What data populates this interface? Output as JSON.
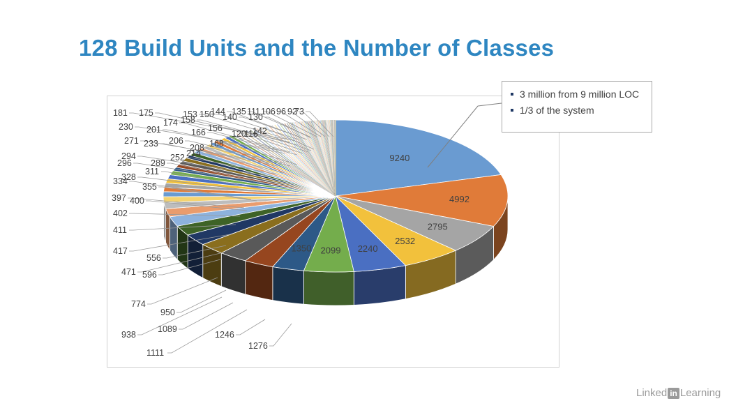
{
  "slide": {
    "title": "128 Build Units and the Number of Classes"
  },
  "callout": {
    "items": [
      "3 million from 9 million LOC",
      "1/3 of the system"
    ]
  },
  "watermark": {
    "brand_left": "Linked",
    "brand_mid": "in",
    "brand_right": "Learning"
  },
  "chart_data": {
    "type": "pie",
    "title": "",
    "labels_outside_left": [
      181,
      175,
      153,
      150,
      158,
      144,
      140,
      130,
      135,
      111,
      106,
      96,
      92,
      73,
      230,
      201,
      174,
      166,
      156,
      142,
      120,
      116,
      271,
      233,
      206,
      208,
      168,
      294,
      252,
      214,
      296,
      289,
      328,
      311,
      334,
      355,
      397,
      400,
      402,
      411,
      417,
      556,
      471,
      596,
      774,
      950,
      938,
      1089,
      1111,
      1246,
      1276
    ],
    "values": [
      9240,
      4992,
      2795,
      2532,
      2240,
      2099,
      1350,
      1276,
      1246,
      1111,
      1089,
      950,
      938,
      774,
      596,
      556,
      471,
      417,
      411,
      402,
      400,
      397,
      355,
      334,
      328,
      311,
      296,
      294,
      289,
      271,
      252,
      233,
      230,
      214,
      208,
      206,
      201,
      181,
      175,
      174,
      168,
      166,
      158,
      156,
      153,
      150,
      144,
      142,
      140,
      135,
      130,
      120,
      116,
      111,
      106,
      96,
      92,
      73,
      70,
      68,
      66,
      64,
      62,
      60,
      58,
      56,
      54,
      52,
      50,
      49,
      48,
      47,
      46,
      45,
      44,
      43,
      42,
      41,
      40,
      39,
      38,
      37,
      36,
      35,
      34,
      33,
      32,
      31,
      30,
      29,
      28,
      27,
      26,
      25,
      24,
      23,
      22,
      21,
      20,
      19,
      18,
      17,
      16,
      15,
      14,
      13,
      12,
      11,
      10,
      10,
      9,
      9,
      8,
      8,
      7,
      7,
      6,
      6,
      5,
      5,
      4,
      4,
      3,
      3,
      2,
      2,
      1,
      1
    ],
    "slice_labels_inside": [
      9240,
      4992,
      2795,
      2532,
      2240,
      2099,
      1350
    ],
    "colors": [
      "#6a9bd1",
      "#e07b39",
      "#a5a5a5",
      "#f2c13c",
      "#4a6fc2",
      "#74ad4c",
      "#2d5987",
      "#96461f",
      "#595959",
      "#8a6e1e",
      "#203864",
      "#3e6327",
      "#8db2dd",
      "#e99c6d",
      "#bdbdbd",
      "#f5d36f"
    ],
    "legend": "none"
  }
}
